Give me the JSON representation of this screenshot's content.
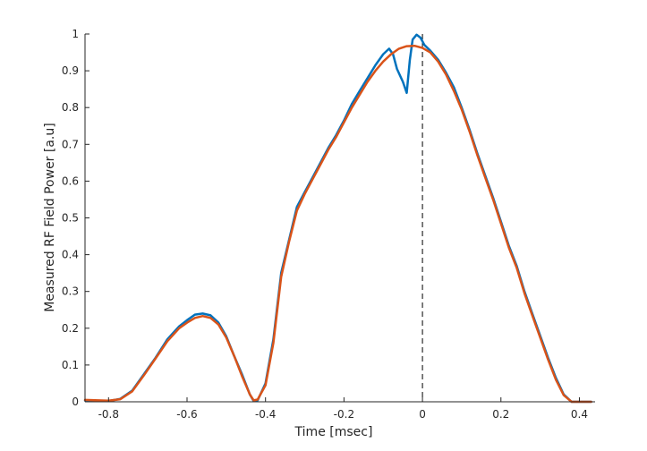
{
  "chart_data": {
    "type": "line",
    "title": "",
    "xlabel": "Time [msec]",
    "ylabel": "Measured RF Field Power [a.u]",
    "xlim": [
      -0.86,
      0.44
    ],
    "ylim": [
      0,
      1
    ],
    "xticks": [
      -0.8,
      -0.6,
      -0.4,
      -0.2,
      0,
      0.2,
      0.4
    ],
    "xtick_labels": [
      "-0.8",
      "-0.6",
      "-0.4",
      "-0.2",
      "0",
      "0.2",
      "0.4"
    ],
    "yticks": [
      0,
      0.1,
      0.2,
      0.3,
      0.4,
      0.5,
      0.6,
      0.7,
      0.8,
      0.9,
      1
    ],
    "ytick_labels": [
      "0",
      "0.1",
      "0.2",
      "0.3",
      "0.4",
      "0.5",
      "0.6",
      "0.7",
      "0.8",
      "0.9",
      "1"
    ],
    "grid": false,
    "legend": "none",
    "reference_line": {
      "x": 0,
      "style": "dashed",
      "color": "#000000"
    },
    "series": [
      {
        "color": "#0072BD",
        "points": [
          [
            -0.86,
            0.004
          ],
          [
            -0.8,
            0.002
          ],
          [
            -0.77,
            0.008
          ],
          [
            -0.74,
            0.03
          ],
          [
            -0.71,
            0.075
          ],
          [
            -0.68,
            0.12
          ],
          [
            -0.65,
            0.17
          ],
          [
            -0.62,
            0.205
          ],
          [
            -0.6,
            0.222
          ],
          [
            -0.58,
            0.237
          ],
          [
            -0.56,
            0.24
          ],
          [
            -0.54,
            0.235
          ],
          [
            -0.52,
            0.215
          ],
          [
            -0.5,
            0.178
          ],
          [
            -0.48,
            0.125
          ],
          [
            -0.46,
            0.075
          ],
          [
            -0.44,
            0.02
          ],
          [
            -0.43,
            0.002
          ],
          [
            -0.42,
            0.004
          ],
          [
            -0.4,
            0.05
          ],
          [
            -0.38,
            0.17
          ],
          [
            -0.36,
            0.35
          ],
          [
            -0.34,
            0.44
          ],
          [
            -0.32,
            0.53
          ],
          [
            -0.3,
            0.57
          ],
          [
            -0.28,
            0.61
          ],
          [
            -0.26,
            0.65
          ],
          [
            -0.24,
            0.69
          ],
          [
            -0.22,
            0.725
          ],
          [
            -0.2,
            0.765
          ],
          [
            -0.18,
            0.81
          ],
          [
            -0.16,
            0.845
          ],
          [
            -0.14,
            0.88
          ],
          [
            -0.12,
            0.915
          ],
          [
            -0.1,
            0.945
          ],
          [
            -0.085,
            0.96
          ],
          [
            -0.075,
            0.945
          ],
          [
            -0.065,
            0.905
          ],
          [
            -0.05,
            0.87
          ],
          [
            -0.04,
            0.84
          ],
          [
            -0.032,
            0.93
          ],
          [
            -0.025,
            0.985
          ],
          [
            -0.015,
            0.998
          ],
          [
            -0.005,
            0.99
          ],
          [
            0.005,
            0.97
          ],
          [
            0.02,
            0.955
          ],
          [
            0.04,
            0.93
          ],
          [
            0.06,
            0.895
          ],
          [
            0.08,
            0.855
          ],
          [
            0.1,
            0.8
          ],
          [
            0.12,
            0.74
          ],
          [
            0.14,
            0.675
          ],
          [
            0.16,
            0.615
          ],
          [
            0.18,
            0.555
          ],
          [
            0.2,
            0.49
          ],
          [
            0.22,
            0.425
          ],
          [
            0.24,
            0.37
          ],
          [
            0.26,
            0.3
          ],
          [
            0.28,
            0.24
          ],
          [
            0.3,
            0.18
          ],
          [
            0.32,
            0.12
          ],
          [
            0.34,
            0.065
          ],
          [
            0.36,
            0.02
          ],
          [
            0.38,
            0.0
          ],
          [
            0.43,
            0.0
          ]
        ]
      },
      {
        "color": "#D95319",
        "points": [
          [
            -0.86,
            0.005
          ],
          [
            -0.8,
            0.003
          ],
          [
            -0.77,
            0.007
          ],
          [
            -0.74,
            0.028
          ],
          [
            -0.71,
            0.072
          ],
          [
            -0.68,
            0.118
          ],
          [
            -0.65,
            0.165
          ],
          [
            -0.62,
            0.2
          ],
          [
            -0.6,
            0.215
          ],
          [
            -0.58,
            0.228
          ],
          [
            -0.56,
            0.233
          ],
          [
            -0.54,
            0.228
          ],
          [
            -0.52,
            0.21
          ],
          [
            -0.5,
            0.175
          ],
          [
            -0.48,
            0.125
          ],
          [
            -0.46,
            0.07
          ],
          [
            -0.44,
            0.02
          ],
          [
            -0.43,
            0.004
          ],
          [
            -0.42,
            0.006
          ],
          [
            -0.4,
            0.045
          ],
          [
            -0.38,
            0.16
          ],
          [
            -0.36,
            0.34
          ],
          [
            -0.34,
            0.435
          ],
          [
            -0.32,
            0.52
          ],
          [
            -0.3,
            0.565
          ],
          [
            -0.28,
            0.605
          ],
          [
            -0.26,
            0.645
          ],
          [
            -0.24,
            0.685
          ],
          [
            -0.22,
            0.72
          ],
          [
            -0.2,
            0.76
          ],
          [
            -0.18,
            0.8
          ],
          [
            -0.16,
            0.835
          ],
          [
            -0.14,
            0.87
          ],
          [
            -0.12,
            0.9
          ],
          [
            -0.1,
            0.925
          ],
          [
            -0.08,
            0.945
          ],
          [
            -0.06,
            0.96
          ],
          [
            -0.04,
            0.967
          ],
          [
            -0.02,
            0.968
          ],
          [
            0,
            0.962
          ],
          [
            0.02,
            0.95
          ],
          [
            0.04,
            0.925
          ],
          [
            0.06,
            0.89
          ],
          [
            0.08,
            0.845
          ],
          [
            0.1,
            0.795
          ],
          [
            0.12,
            0.735
          ],
          [
            0.14,
            0.67
          ],
          [
            0.16,
            0.61
          ],
          [
            0.18,
            0.55
          ],
          [
            0.2,
            0.485
          ],
          [
            0.22,
            0.42
          ],
          [
            0.24,
            0.365
          ],
          [
            0.26,
            0.295
          ],
          [
            0.28,
            0.235
          ],
          [
            0.3,
            0.175
          ],
          [
            0.32,
            0.115
          ],
          [
            0.34,
            0.06
          ],
          [
            0.36,
            0.018
          ],
          [
            0.38,
            0.0
          ],
          [
            0.43,
            0.0
          ]
        ]
      }
    ]
  }
}
